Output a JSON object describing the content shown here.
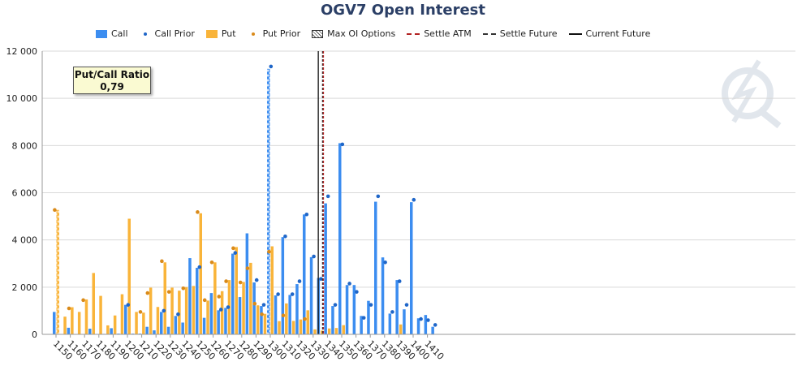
{
  "title": "OGV7 Open Interest",
  "legend": [
    {
      "label": "Call",
      "kind": "bar",
      "color": "#3c8df0"
    },
    {
      "label": "Call Prior",
      "kind": "dot",
      "color": "#1f66c8"
    },
    {
      "label": "Put",
      "kind": "bar",
      "color": "#f9b43a"
    },
    {
      "label": "Put Prior",
      "kind": "dot",
      "color": "#d98a1a"
    },
    {
      "label": "Max OI Options",
      "kind": "hatch",
      "color": "#555555"
    },
    {
      "label": "Settle ATM",
      "kind": "dash",
      "color": "#b22222"
    },
    {
      "label": "Settle Future",
      "kind": "dash",
      "color": "#333333"
    },
    {
      "label": "Current Future",
      "kind": "line",
      "color": "#111111"
    }
  ],
  "ratio_box": {
    "title": "Put/Call Ratio",
    "value": "0,79"
  },
  "chart_data": {
    "type": "bar",
    "title": "OGV7 Open Interest",
    "ylim": [
      0,
      12000
    ],
    "y_ticks": [
      "0",
      "2 000",
      "4 000",
      "6 000",
      "8 000",
      "10 000",
      "12 000"
    ],
    "x_tick_labels": [
      "1150",
      "1160",
      "1170",
      "1180",
      "1190",
      "1200",
      "1210",
      "1220",
      "1230",
      "1240",
      "1250",
      "1260",
      "1270",
      "1280",
      "1290",
      "1300",
      "1310",
      "1320",
      "1330",
      "1340",
      "1350",
      "1360",
      "1370",
      "1380",
      "1390",
      "1400",
      "1410"
    ],
    "strikes": [
      1150,
      1155,
      1160,
      1165,
      1170,
      1175,
      1180,
      1185,
      1190,
      1195,
      1200,
      1205,
      1210,
      1215,
      1220,
      1225,
      1230,
      1235,
      1240,
      1245,
      1250,
      1255,
      1260,
      1265,
      1270,
      1275,
      1280,
      1285,
      1290,
      1295,
      1300,
      1305,
      1310,
      1315,
      1320,
      1325,
      1330,
      1335,
      1340,
      1345,
      1350,
      1355,
      1360,
      1365,
      1370,
      1375,
      1380,
      1385,
      1390,
      1395,
      1400,
      1405,
      1410,
      1415
    ],
    "series": [
      {
        "name": "Call",
        "values": [
          950,
          0,
          280,
          0,
          0,
          240,
          0,
          20,
          260,
          30,
          1250,
          30,
          30,
          320,
          170,
          950,
          320,
          780,
          500,
          3230,
          2820,
          700,
          1750,
          1020,
          1120,
          3420,
          1580,
          4280,
          2200,
          1200,
          11250,
          1650,
          4120,
          1670,
          2130,
          5080,
          3270,
          2390,
          5550,
          1200,
          8100,
          2090,
          2090,
          780,
          1420,
          5620,
          3260,
          880,
          2300,
          1060,
          5600,
          680,
          820,
          320
        ]
      },
      {
        "name": "Call Prior",
        "values": [
          null,
          null,
          null,
          null,
          null,
          null,
          null,
          null,
          null,
          null,
          1250,
          null,
          null,
          null,
          null,
          1000,
          null,
          850,
          null,
          null,
          2850,
          null,
          null,
          1050,
          1150,
          3450,
          null,
          null,
          2300,
          1250,
          11350,
          1700,
          4150,
          1700,
          2250,
          5080,
          3300,
          2350,
          5850,
          1250,
          8050,
          2150,
          1800,
          700,
          1250,
          5850,
          3050,
          950,
          2250,
          1250,
          5700,
          650,
          600,
          400
        ]
      },
      {
        "name": "Put",
        "values": [
          5270,
          750,
          1150,
          950,
          1480,
          2600,
          1630,
          380,
          800,
          1700,
          4900,
          950,
          920,
          1980,
          1160,
          3050,
          1980,
          1850,
          2000,
          2050,
          5130,
          1430,
          3050,
          1830,
          2300,
          3700,
          2220,
          3030,
          1230,
          870,
          3730,
          560,
          1310,
          570,
          630,
          1020,
          210,
          160,
          250,
          270,
          390,
          0,
          0,
          0,
          0,
          0,
          0,
          0,
          420,
          0,
          0,
          0,
          0,
          0
        ]
      },
      {
        "name": "Put Prior",
        "values": [
          5270,
          null,
          1100,
          null,
          1450,
          null,
          null,
          null,
          null,
          null,
          null,
          null,
          950,
          1750,
          null,
          3100,
          1800,
          null,
          1950,
          null,
          5180,
          1450,
          3050,
          1600,
          2250,
          3650,
          2200,
          2800,
          1300,
          850,
          3500,
          null,
          800,
          null,
          null,
          650,
          null,
          null,
          null,
          null,
          null,
          null,
          null,
          null,
          null,
          null,
          null,
          null,
          null,
          null,
          null,
          null,
          null,
          null
        ]
      }
    ],
    "max_oi": {
      "call_strike": 1300,
      "put_strike": 1150
    },
    "current_future_strike": 1333.6,
    "settle_future_strike": 1336.6,
    "settle_atm_strike": 1337.2
  }
}
